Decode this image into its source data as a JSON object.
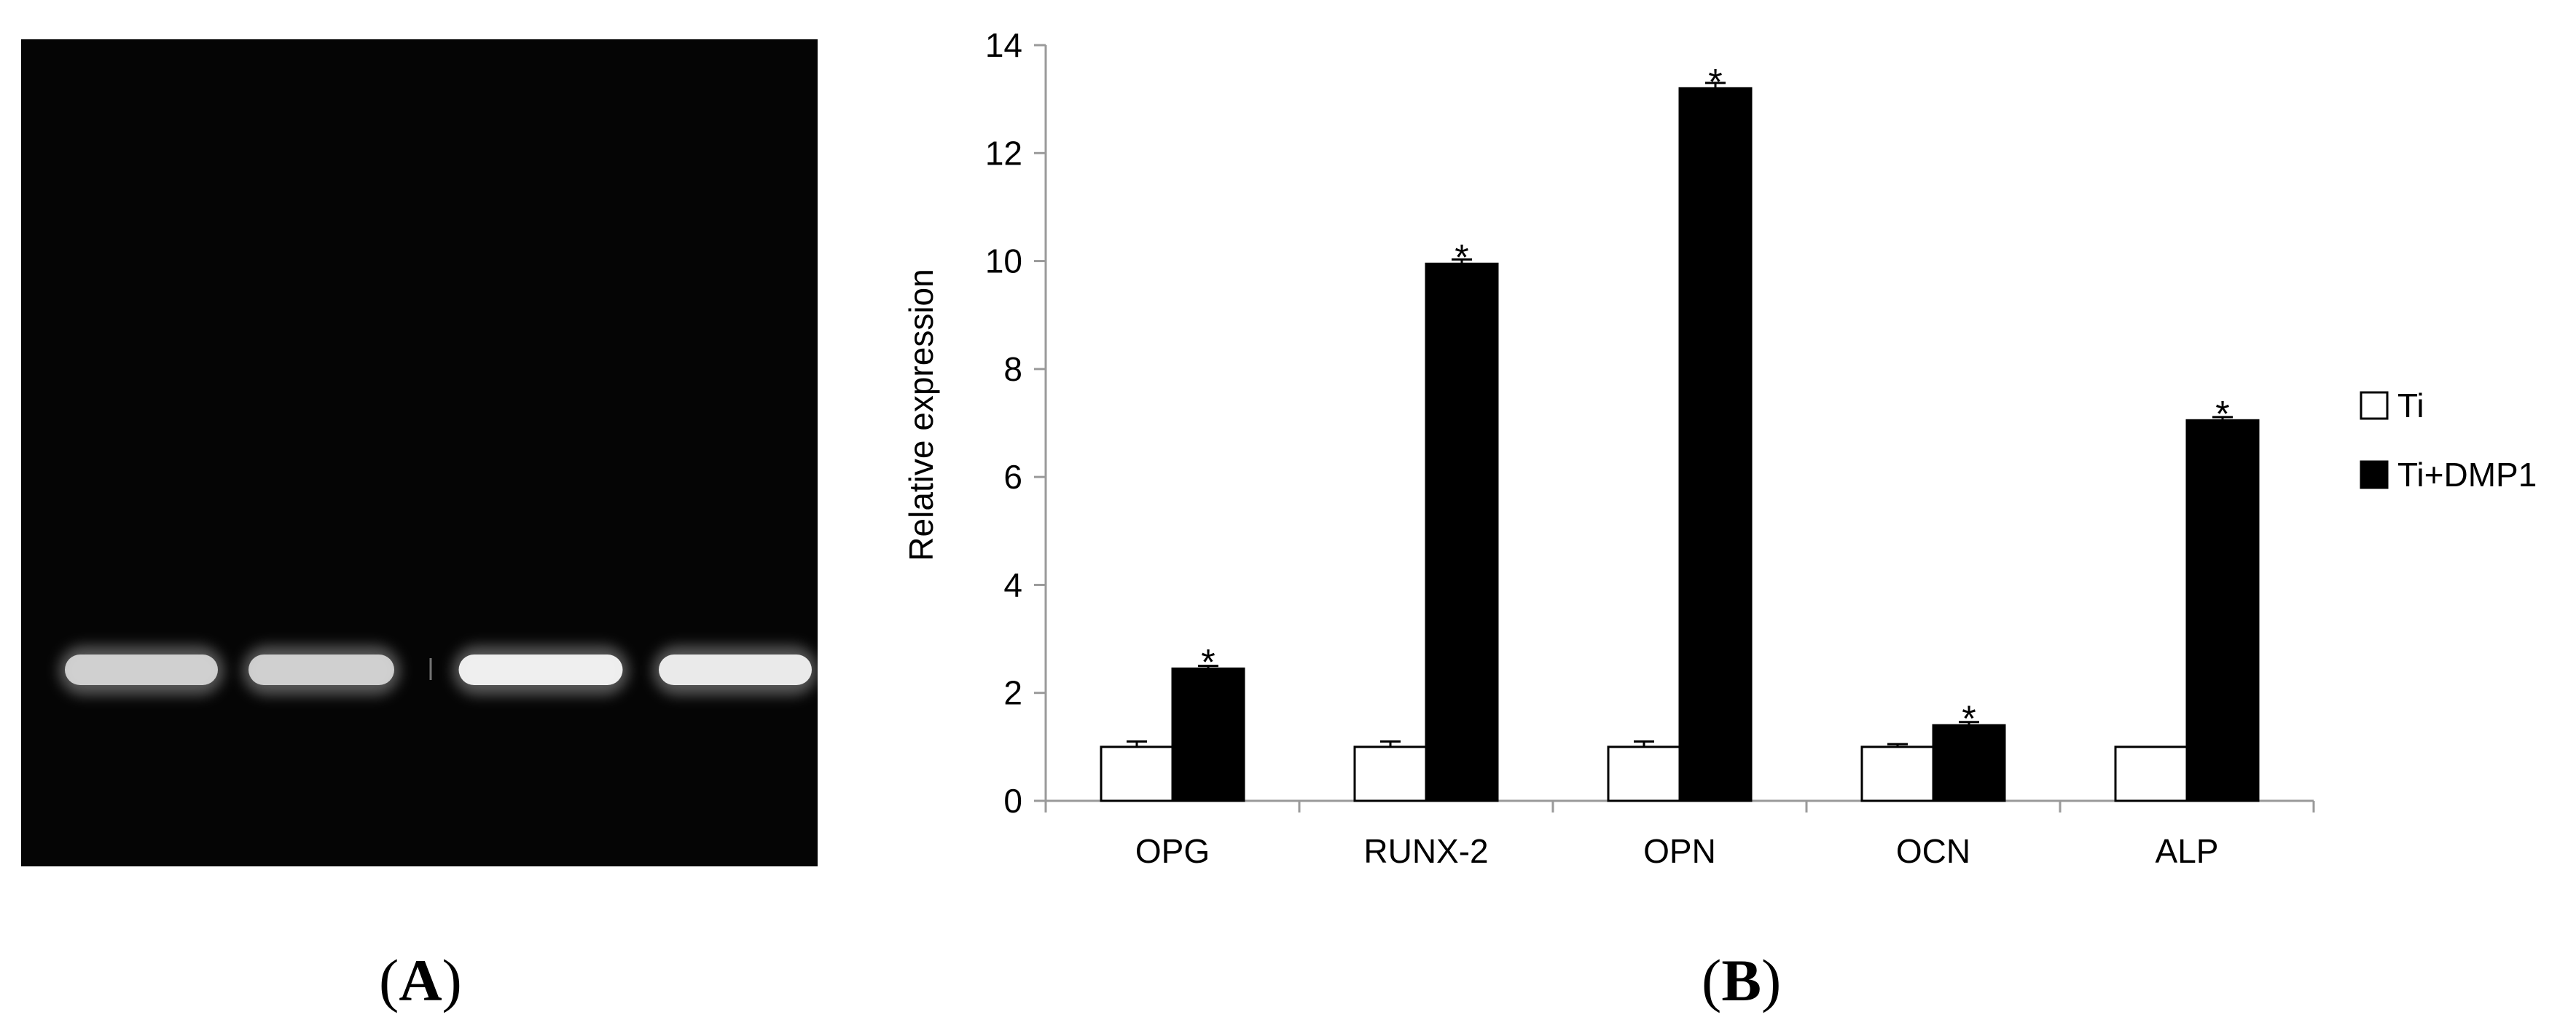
{
  "panels": {
    "a_label": "A",
    "b_label": "B"
  },
  "gel": {
    "lanes": 4,
    "background": "#050505",
    "band_color": "#f2f2f2"
  },
  "chart_data": {
    "type": "bar",
    "title": "",
    "xlabel": "",
    "ylabel": "Relative expression",
    "categories": [
      "OPG",
      "RUNX-2",
      "OPN",
      "OCN",
      "ALP"
    ],
    "ylim": [
      0,
      14
    ],
    "yticks": [
      0,
      2,
      4,
      6,
      8,
      10,
      12,
      14
    ],
    "grid": false,
    "legend_position": "right",
    "series": [
      {
        "name": "Ti",
        "values": [
          1,
          1,
          1,
          1,
          1
        ],
        "errors": [
          0.1,
          0.1,
          0.1,
          0.05,
          0
        ],
        "color": "#ffffff"
      },
      {
        "name": "Ti+DMP1",
        "values": [
          2.45,
          9.95,
          13.2,
          1.4,
          7.05
        ],
        "errors": [
          0.05,
          0.08,
          0.1,
          0.06,
          0.06
        ],
        "color": "#000000"
      }
    ],
    "annotations": [
      "*",
      "*",
      "*",
      "*",
      "*"
    ]
  }
}
